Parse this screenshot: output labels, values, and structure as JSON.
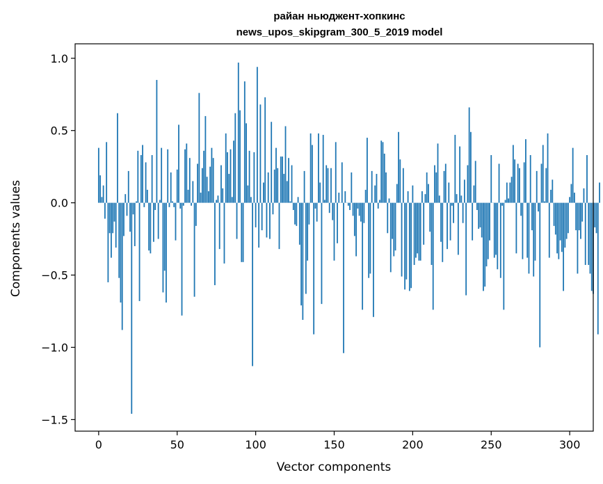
{
  "chart_data": {
    "type": "bar",
    "title": "райан ньюджент-хопкинс",
    "subtitle": "news_upos_skipgram_300_5_2019 model",
    "xlabel": "Vector components",
    "ylabel": "Components values",
    "xlim": [
      -15,
      315
    ],
    "ylim": [
      -1.58,
      1.1
    ],
    "xticks": [
      0,
      50,
      100,
      150,
      200,
      250,
      300
    ],
    "yticks": [
      -1.5,
      -1.0,
      -0.5,
      0.0,
      0.5,
      1.0
    ],
    "ytick_labels": [
      "−1.5",
      "−1.0",
      "−0.5",
      "0.0",
      "0.5",
      "1.0"
    ],
    "grid": false,
    "bar_color": "#1f77b4",
    "values": [
      0.38,
      0.19,
      0.04,
      0.12,
      -0.11,
      0.42,
      -0.55,
      -0.21,
      -0.38,
      -0.21,
      -0.13,
      -0.31,
      0.62,
      -0.52,
      -0.69,
      -0.88,
      -0.23,
      0.06,
      -0.09,
      0.22,
      -0.2,
      -1.46,
      -0.08,
      -0.3,
      0.01,
      0.36,
      -0.68,
      0.33,
      0.4,
      -0.03,
      0.28,
      0.09,
      -0.33,
      -0.35,
      0.33,
      -0.27,
      -0.05,
      0.85,
      -0.25,
      0.02,
      0.38,
      -0.62,
      -0.47,
      -0.69,
      0.37,
      -0.03,
      0.21,
      0.01,
      -0.03,
      -0.26,
      0.23,
      0.54,
      -0.04,
      -0.78,
      -0.02,
      0.37,
      0.41,
      0.09,
      0.31,
      -0.02,
      0.15,
      -0.65,
      -0.16,
      0.27,
      0.76,
      0.07,
      0.24,
      0.36,
      0.6,
      0.18,
      0.08,
      0.25,
      0.38,
      0.31,
      -0.57,
      0.02,
      0.05,
      -0.32,
      0.26,
      0.1,
      -0.42,
      0.48,
      0.35,
      0.2,
      0.37,
      0.04,
      0.43,
      0.62,
      -0.25,
      0.97,
      0.64,
      -0.41,
      -0.41,
      0.84,
      0.55,
      0.12,
      0.36,
      0.04,
      -1.13,
      0.35,
      -0.17,
      0.94,
      -0.31,
      0.68,
      -0.19,
      0.14,
      0.73,
      -0.24,
      0.21,
      -0.25,
      0.56,
      -0.08,
      0.23,
      0.38,
      0.24,
      -0.32,
      0.32,
      0.32,
      0.2,
      0.53,
      0.15,
      0.31,
      0.01,
      0.26,
      -0.05,
      -0.15,
      -0.16,
      0.04,
      -0.29,
      -0.71,
      -0.81,
      0.22,
      -0.63,
      -0.4,
      -0.15,
      0.48,
      0.4,
      -0.91,
      -0.04,
      -0.13,
      0.48,
      0.14,
      -0.7,
      0.47,
      0.02,
      0.26,
      0.24,
      -0.07,
      0.24,
      -0.12,
      -0.4,
      0.42,
      -0.28,
      0.07,
      0.0,
      0.28,
      -1.04,
      0.08,
      0.0,
      -0.02,
      -0.05,
      0.21,
      -0.09,
      -0.23,
      -0.37,
      -0.04,
      -0.09,
      -0.13,
      -0.74,
      -0.14,
      0.09,
      0.45,
      -0.52,
      -0.49,
      0.22,
      -0.79,
      0.12,
      0.2,
      -0.04,
      0.02,
      0.43,
      0.42,
      0.34,
      0.21,
      -0.21,
      0.03,
      -0.48,
      -0.25,
      -0.37,
      -0.33,
      0.13,
      0.49,
      0.3,
      -0.51,
      0.24,
      -0.6,
      -0.53,
      0.08,
      -0.61,
      -0.59,
      0.12,
      -0.43,
      -0.38,
      -0.35,
      -0.4,
      -0.4,
      0.08,
      -0.29,
      0.06,
      0.21,
      0.13,
      -0.2,
      -0.43,
      -0.74,
      0.26,
      0.21,
      0.41,
      0.05,
      -0.27,
      -0.41,
      0.22,
      0.27,
      -0.32,
      0.14,
      -0.26,
      -0.02,
      -0.14,
      0.47,
      0.06,
      -0.36,
      0.39,
      0.05,
      -0.14,
      0.16,
      -0.64,
      0.26,
      0.66,
      0.49,
      -0.26,
      0.12,
      0.29,
      -0.05,
      -0.18,
      -0.17,
      -0.24,
      -0.61,
      -0.58,
      -0.44,
      -0.39,
      -0.26,
      0.33,
      0.0,
      -0.38,
      -0.36,
      -0.46,
      0.27,
      -0.52,
      -0.02,
      -0.74,
      0.02,
      0.14,
      0.03,
      0.14,
      0.18,
      0.4,
      0.3,
      -0.35,
      0.27,
      0.24,
      -0.09,
      -0.39,
      0.28,
      0.44,
      -0.38,
      -0.49,
      0.33,
      -0.19,
      -0.51,
      -0.4,
      0.22,
      -0.06,
      -1.0,
      0.27,
      0.4,
      0.01,
      0.24,
      0.48,
      -0.38,
      0.09,
      0.16,
      -0.16,
      -0.22,
      -0.35,
      -0.39,
      -0.26,
      -0.34,
      -0.61,
      -0.31,
      -0.25,
      -0.21,
      0.04,
      0.13,
      0.38,
      0.07,
      -0.19,
      -0.49,
      -0.19,
      -0.25,
      -0.13,
      0.1,
      -0.43,
      0.33,
      -0.43,
      -0.49,
      -0.61,
      -0.63,
      -0.17,
      -0.21,
      -0.91,
      0.14
    ]
  }
}
